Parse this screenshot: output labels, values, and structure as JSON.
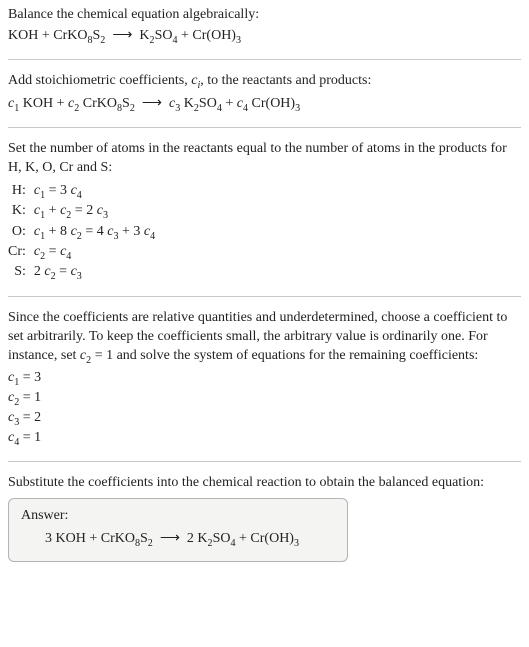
{
  "colors": {
    "text": "#222222",
    "rule": "#c7c7c7",
    "box_bg": "#f4f4f2",
    "box_border": "#b4b4b4"
  },
  "fonts": {
    "family": "Georgia, 'Times New Roman', serif",
    "size_pt": 11
  },
  "intro": {
    "line1": "Balance the chemical equation algebraically:",
    "eq": "KOH + CrKO<sub>8</sub>S<sub>2</sub> &nbsp;⟶&nbsp; K<sub>2</sub>SO<sub>4</sub> + Cr(OH)<sub>3</sub>"
  },
  "step1": {
    "text": "Add stoichiometric coefficients, <span class=\"ital\">c<sub>i</sub></span>, to the reactants and products:",
    "eq": "<span class=\"ital\">c</span><sub>1</sub> KOH + <span class=\"ital\">c</span><sub>2</sub> CrKO<sub>8</sub>S<sub>2</sub> &nbsp;⟶&nbsp; <span class=\"ital\">c</span><sub>3</sub> K<sub>2</sub>SO<sub>4</sub> + <span class=\"ital\">c</span><sub>4</sub> Cr(OH)<sub>3</sub>"
  },
  "step2": {
    "text": "Set the number of atoms in the reactants equal to the number of atoms in the products for H, K, O, Cr and S:",
    "rows": [
      {
        "el": "H:",
        "eq": "<span class=\"ital\">c</span><sub>1</sub> = 3 <span class=\"ital\">c</span><sub>4</sub>"
      },
      {
        "el": "K:",
        "eq": "<span class=\"ital\">c</span><sub>1</sub> + <span class=\"ital\">c</span><sub>2</sub> = 2 <span class=\"ital\">c</span><sub>3</sub>"
      },
      {
        "el": "O:",
        "eq": "<span class=\"ital\">c</span><sub>1</sub> + 8 <span class=\"ital\">c</span><sub>2</sub> = 4 <span class=\"ital\">c</span><sub>3</sub> + 3 <span class=\"ital\">c</span><sub>4</sub>"
      },
      {
        "el": "Cr:",
        "eq": "<span class=\"ital\">c</span><sub>2</sub> = <span class=\"ital\">c</span><sub>4</sub>"
      },
      {
        "el": "S:",
        "eq": "2 <span class=\"ital\">c</span><sub>2</sub> = <span class=\"ital\">c</span><sub>3</sub>"
      }
    ]
  },
  "step3": {
    "text": "Since the coefficients are relative quantities and underdetermined, choose a coefficient to set arbitrarily. To keep the coefficients small, the arbitrary value is ordinarily one. For instance, set <span class=\"ital\">c</span><sub>2</sub> = 1 and solve the system of equations for the remaining coefficients:",
    "coefs": [
      "<span class=\"ital\">c</span><sub>1</sub> = 3",
      "<span class=\"ital\">c</span><sub>2</sub> = 1",
      "<span class=\"ital\">c</span><sub>3</sub> = 2",
      "<span class=\"ital\">c</span><sub>4</sub> = 1"
    ]
  },
  "step4": {
    "text": "Substitute the coefficients into the chemical reaction to obtain the balanced equation:"
  },
  "answer": {
    "label": "Answer:",
    "eq": "3 KOH + CrKO<sub>8</sub>S<sub>2</sub> &nbsp;⟶&nbsp; 2 K<sub>2</sub>SO<sub>4</sub> + Cr(OH)<sub>3</sub>"
  }
}
